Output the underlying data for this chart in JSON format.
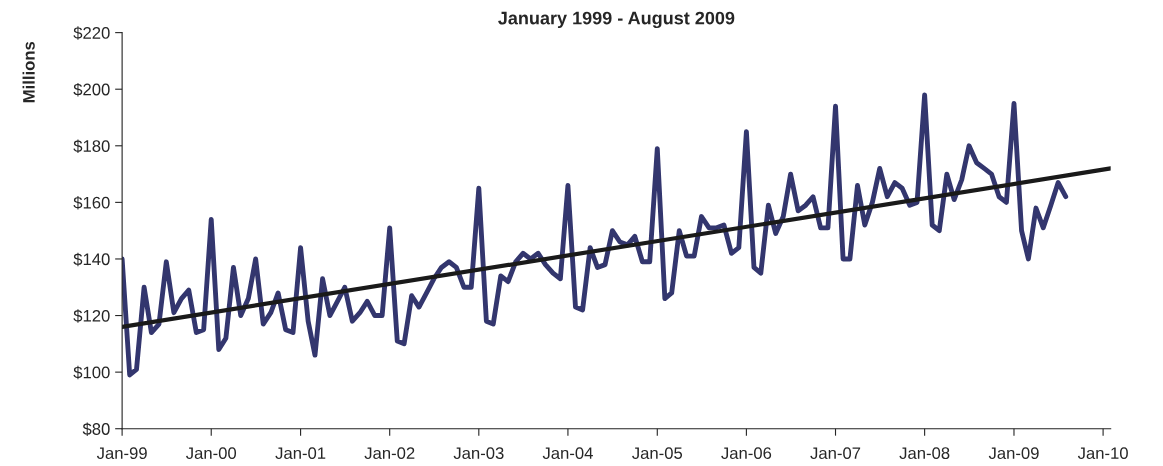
{
  "chart_data": {
    "type": "line",
    "title": "January 1999 - August 2009",
    "ylabel": "Millions",
    "ylim": [
      80,
      220
    ],
    "yticks": [
      {
        "value": 80,
        "label": "$80"
      },
      {
        "value": 100,
        "label": "$100"
      },
      {
        "value": 120,
        "label": "$120"
      },
      {
        "value": 140,
        "label": "$140"
      },
      {
        "value": 160,
        "label": "$160"
      },
      {
        "value": 180,
        "label": "$180"
      },
      {
        "value": 200,
        "label": "$200"
      },
      {
        "value": 220,
        "label": "$220"
      }
    ],
    "xlim": [
      "1999-01",
      "2010-02"
    ],
    "xticks": [
      {
        "value": "1999-01",
        "label": "Jan-99"
      },
      {
        "value": "2000-01",
        "label": "Jan-00"
      },
      {
        "value": "2001-01",
        "label": "Jan-01"
      },
      {
        "value": "2002-01",
        "label": "Jan-02"
      },
      {
        "value": "2003-01",
        "label": "Jan-03"
      },
      {
        "value": "2004-01",
        "label": "Jan-04"
      },
      {
        "value": "2005-01",
        "label": "Jan-05"
      },
      {
        "value": "2006-01",
        "label": "Jan-06"
      },
      {
        "value": "2007-01",
        "label": "Jan-07"
      },
      {
        "value": "2008-01",
        "label": "Jan-08"
      },
      {
        "value": "2009-01",
        "label": "Jan-09"
      },
      {
        "value": "2010-01",
        "label": "Jan-10"
      }
    ],
    "grid": false,
    "marker": "none",
    "line_style": "solid",
    "series": [
      {
        "color": "#33366e",
        "x": [
          "1999-01",
          "1999-02",
          "1999-03",
          "1999-04",
          "1999-05",
          "1999-06",
          "1999-07",
          "1999-08",
          "1999-09",
          "1999-10",
          "1999-11",
          "1999-12",
          "2000-01",
          "2000-02",
          "2000-03",
          "2000-04",
          "2000-05",
          "2000-06",
          "2000-07",
          "2000-08",
          "2000-09",
          "2000-10",
          "2000-11",
          "2000-12",
          "2001-01",
          "2001-02",
          "2001-03",
          "2001-04",
          "2001-05",
          "2001-06",
          "2001-07",
          "2001-08",
          "2001-09",
          "2001-10",
          "2001-11",
          "2001-12",
          "2002-01",
          "2002-02",
          "2002-03",
          "2002-04",
          "2002-05",
          "2002-06",
          "2002-07",
          "2002-08",
          "2002-09",
          "2002-10",
          "2002-11",
          "2002-12",
          "2003-01",
          "2003-02",
          "2003-03",
          "2003-04",
          "2003-05",
          "2003-06",
          "2003-07",
          "2003-08",
          "2003-09",
          "2003-10",
          "2003-11",
          "2003-12",
          "2004-01",
          "2004-02",
          "2004-03",
          "2004-04",
          "2004-05",
          "2004-06",
          "2004-07",
          "2004-08",
          "2004-09",
          "2004-10",
          "2004-11",
          "2004-12",
          "2005-01",
          "2005-02",
          "2005-03",
          "2005-04",
          "2005-05",
          "2005-06",
          "2005-07",
          "2005-08",
          "2005-09",
          "2005-10",
          "2005-11",
          "2005-12",
          "2006-01",
          "2006-02",
          "2006-03",
          "2006-04",
          "2006-05",
          "2006-06",
          "2006-07",
          "2006-08",
          "2006-09",
          "2006-10",
          "2006-11",
          "2006-12",
          "2007-01",
          "2007-02",
          "2007-03",
          "2007-04",
          "2007-05",
          "2007-06",
          "2007-07",
          "2007-08",
          "2007-09",
          "2007-10",
          "2007-11",
          "2007-12",
          "2008-01",
          "2008-02",
          "2008-03",
          "2008-04",
          "2008-05",
          "2008-06",
          "2008-07",
          "2008-08",
          "2008-09",
          "2008-10",
          "2008-11",
          "2008-12",
          "2009-01",
          "2009-02",
          "2009-03",
          "2009-04",
          "2009-05",
          "2009-06",
          "2009-07",
          "2009-08"
        ],
        "values": [
          140,
          99,
          101,
          130,
          114,
          117,
          139,
          121,
          126,
          129,
          114,
          115,
          154,
          108,
          112,
          137,
          120,
          126,
          140,
          117,
          121,
          128,
          115,
          114,
          144,
          118,
          106,
          133,
          120,
          125,
          130,
          118,
          121,
          125,
          120,
          120,
          151,
          111,
          110,
          127,
          123,
          128,
          133,
          137,
          139,
          137,
          130,
          130,
          165,
          118,
          117,
          134,
          132,
          139,
          142,
          140,
          142,
          138,
          135,
          133,
          166,
          123,
          122,
          144,
          137,
          138,
          150,
          146,
          145,
          148,
          139,
          139,
          179,
          126,
          128,
          150,
          141,
          141,
          155,
          151,
          151,
          152,
          142,
          144,
          185,
          137,
          135,
          159,
          149,
          155,
          170,
          157,
          159,
          162,
          151,
          151,
          194,
          140,
          140,
          166,
          152,
          160,
          172,
          162,
          167,
          165,
          159,
          160,
          198,
          152,
          150,
          170,
          161,
          168,
          180,
          174,
          172,
          170,
          162,
          160,
          195,
          150,
          140,
          158,
          151,
          159,
          167,
          162
        ]
      },
      {
        "color": "#1a1a1a",
        "x": [
          "1999-01",
          "2010-02"
        ],
        "values": [
          116,
          172
        ]
      }
    ]
  }
}
